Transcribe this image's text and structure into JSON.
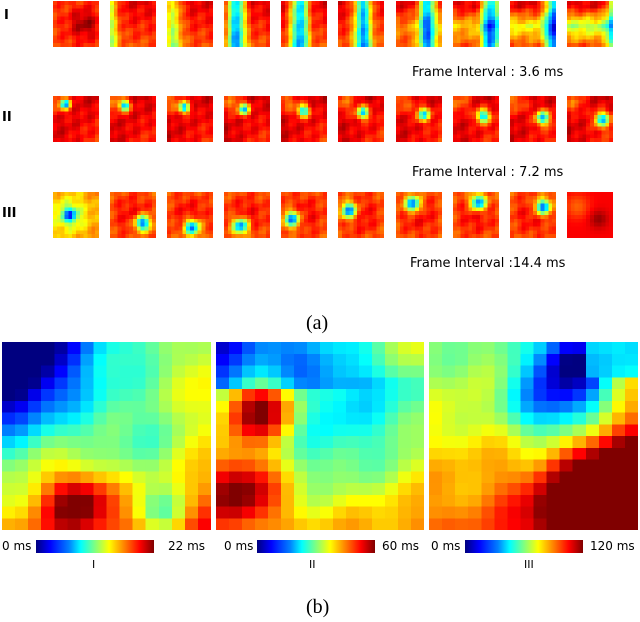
{
  "part_a": {
    "caption": "(a)",
    "rows": [
      {
        "label": "I",
        "interval": "Frame Interval : 3.6 ms"
      },
      {
        "label": "II",
        "interval": "Frame Interval : 7.2 ms"
      },
      {
        "label": "III",
        "interval": "Frame Interval :14.4 ms"
      }
    ]
  },
  "part_b": {
    "caption": "(b)",
    "maps": [
      {
        "label": "I",
        "min": "0 ms",
        "max": "22 ms"
      },
      {
        "label": "II",
        "min": "0 ms",
        "max": "60 ms"
      },
      {
        "label": "III",
        "min": "0 ms",
        "max": "120 ms"
      }
    ]
  },
  "colormap": "jet"
}
